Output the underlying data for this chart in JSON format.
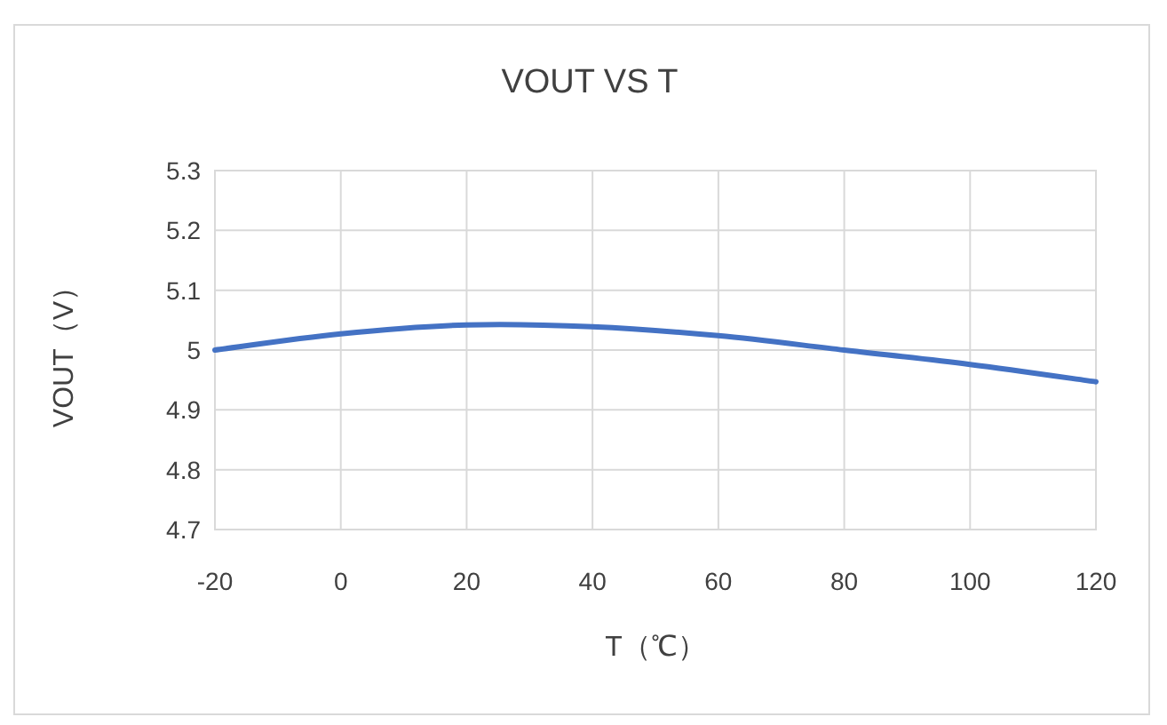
{
  "chart_data": {
    "type": "line",
    "title": "VOUT VS T",
    "xlabel": "T（℃）",
    "ylabel": "VOUT（V）",
    "x": [
      -20,
      0,
      20,
      40,
      60,
      80,
      100,
      120
    ],
    "series": [
      {
        "color": "#4472c4",
        "values": [
          5.0,
          5.027,
          5.042,
          5.039,
          5.024,
          5.0,
          4.976,
          4.947
        ]
      }
    ],
    "xlim": [
      -20,
      120
    ],
    "xticks": [
      -20,
      0,
      20,
      40,
      60,
      80,
      100,
      120
    ],
    "ylim": [
      4.7,
      5.3
    ],
    "yticks": [
      4.7,
      4.8,
      4.9,
      5,
      5.1,
      5.2,
      5.3
    ],
    "grid": true,
    "marker": "none",
    "line_style": "solid"
  }
}
